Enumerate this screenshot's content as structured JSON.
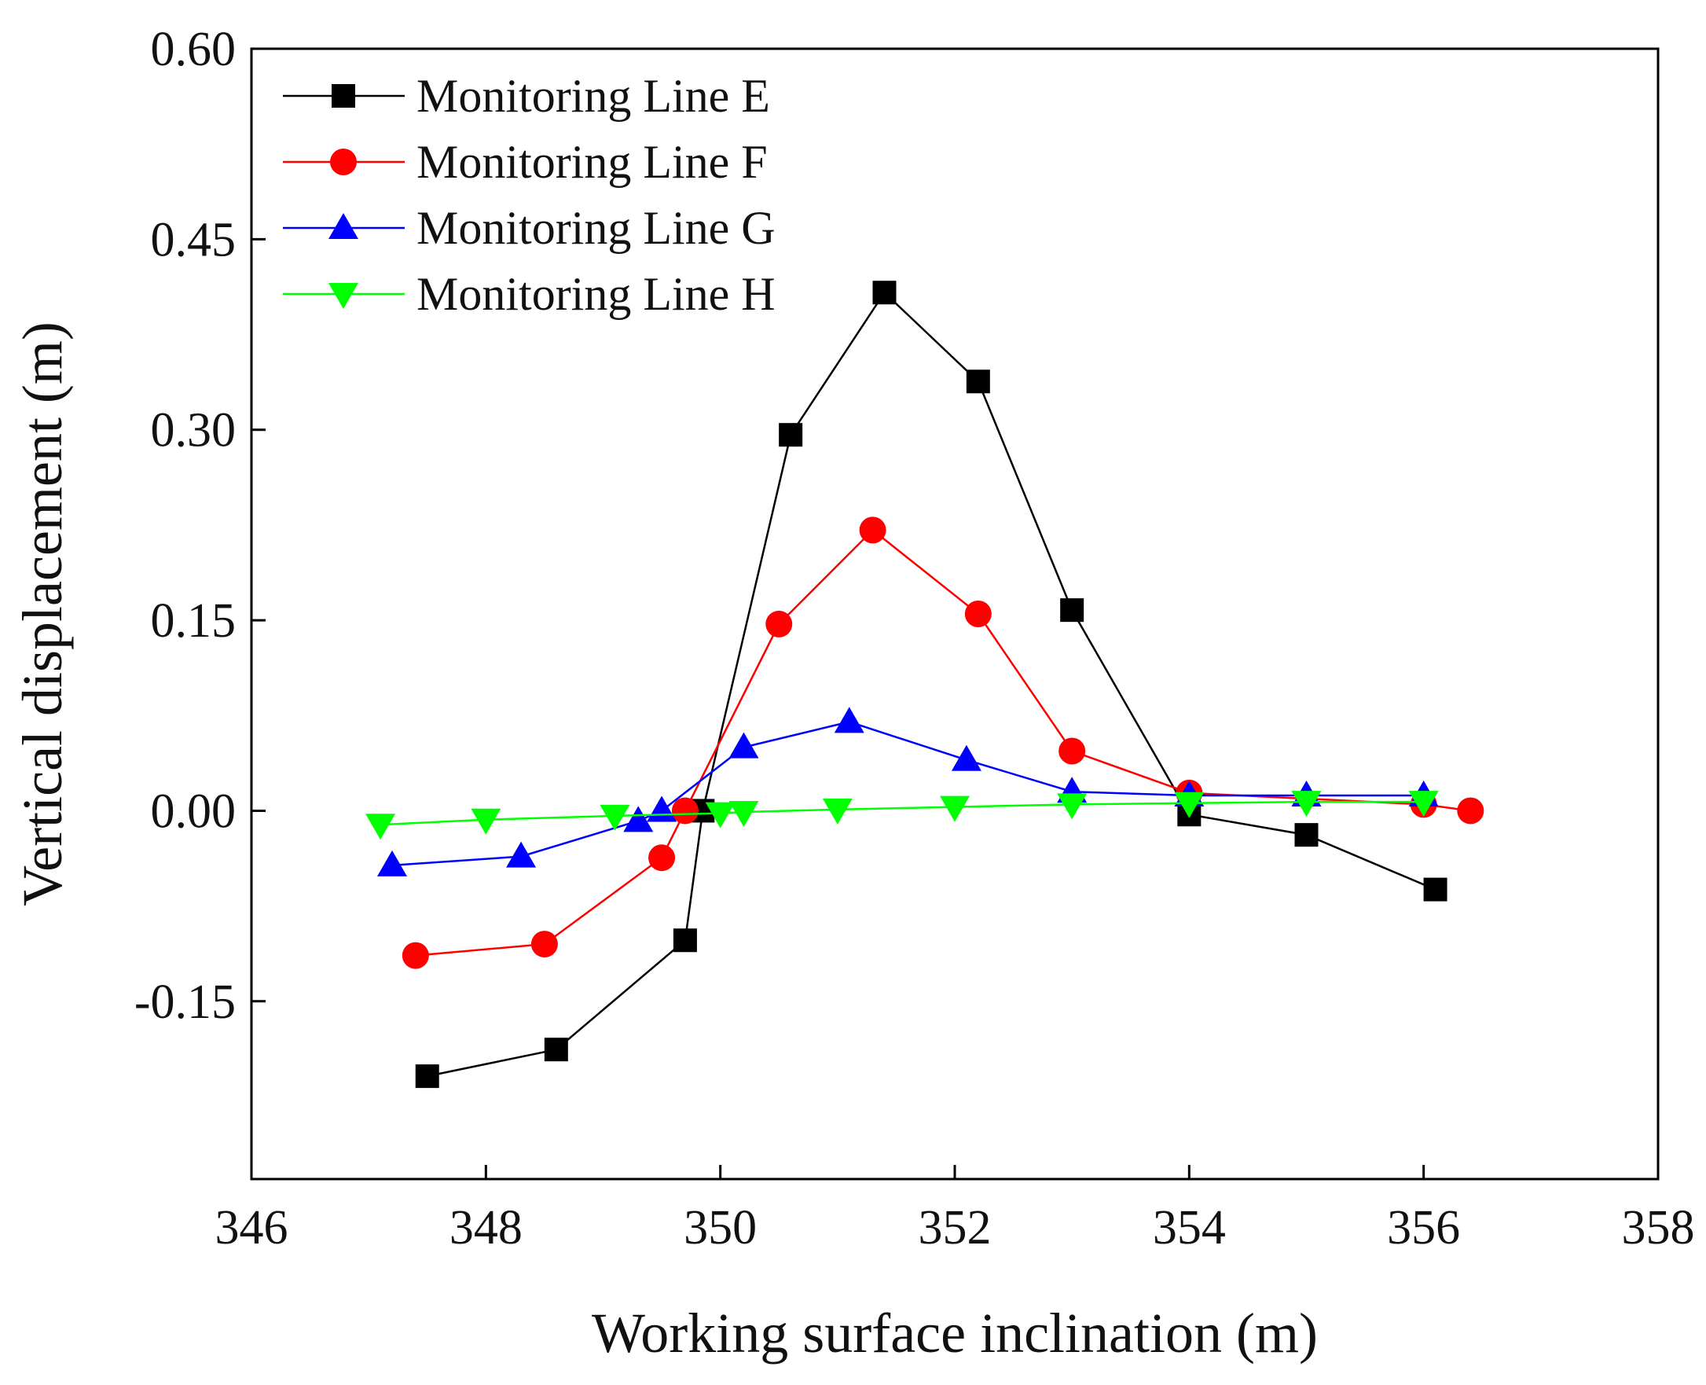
{
  "chart_data": {
    "type": "line",
    "title": "",
    "xlabel": "Working surface inclination (m)",
    "ylabel": "Vertical displacement (m)",
    "xlim": [
      346,
      358
    ],
    "ylim": [
      -0.29,
      0.6
    ],
    "xticks": [
      346,
      348,
      350,
      352,
      354,
      356,
      358
    ],
    "xtick_labels": [
      "346",
      "348",
      "350",
      "352",
      "354",
      "356",
      "358"
    ],
    "yticks": [
      -0.15,
      0.0,
      0.15,
      0.3,
      0.45,
      0.6
    ],
    "ytick_labels": [
      "-0.15",
      "0.00",
      "0.15",
      "0.30",
      "0.45",
      "0.60"
    ],
    "grid": false,
    "legend_position": "top-left",
    "series": [
      {
        "name": "Monitoring Line E",
        "color": "#000000",
        "marker": "square",
        "x": [
          347.5,
          348.6,
          349.7,
          349.85,
          350.6,
          351.4,
          352.2,
          353.0,
          354.0,
          355.0,
          356.1
        ],
        "y": [
          -0.209,
          -0.188,
          -0.102,
          0.0,
          0.296,
          0.408,
          0.338,
          0.158,
          -0.003,
          -0.019,
          -0.062
        ]
      },
      {
        "name": "Monitoring Line F",
        "color": "#ff0000",
        "marker": "circle",
        "x": [
          347.4,
          348.5,
          349.5,
          349.7,
          350.5,
          351.3,
          352.2,
          353.0,
          354.0,
          356.0,
          356.4
        ],
        "y": [
          -0.114,
          -0.105,
          -0.037,
          0.0,
          0.147,
          0.221,
          0.155,
          0.047,
          0.014,
          0.005,
          0.0
        ]
      },
      {
        "name": "Monitoring Line G",
        "color": "#0000ff",
        "marker": "triangle-up",
        "x": [
          347.2,
          348.3,
          349.3,
          349.5,
          350.2,
          351.1,
          352.1,
          353.0,
          354.0,
          355.0,
          356.0
        ],
        "y": [
          -0.043,
          -0.036,
          -0.008,
          0.0,
          0.05,
          0.07,
          0.04,
          0.015,
          0.012,
          0.012,
          0.012
        ]
      },
      {
        "name": "Monitoring Line H",
        "color": "#00ff00",
        "marker": "triangle-down",
        "x": [
          347.1,
          348.0,
          349.1,
          350.0,
          350.2,
          351.0,
          352.0,
          353.0,
          354.0,
          355.0,
          356.0
        ],
        "y": [
          -0.011,
          -0.007,
          -0.004,
          -0.002,
          -0.001,
          0.001,
          0.003,
          0.005,
          0.006,
          0.007,
          0.007
        ]
      }
    ]
  }
}
